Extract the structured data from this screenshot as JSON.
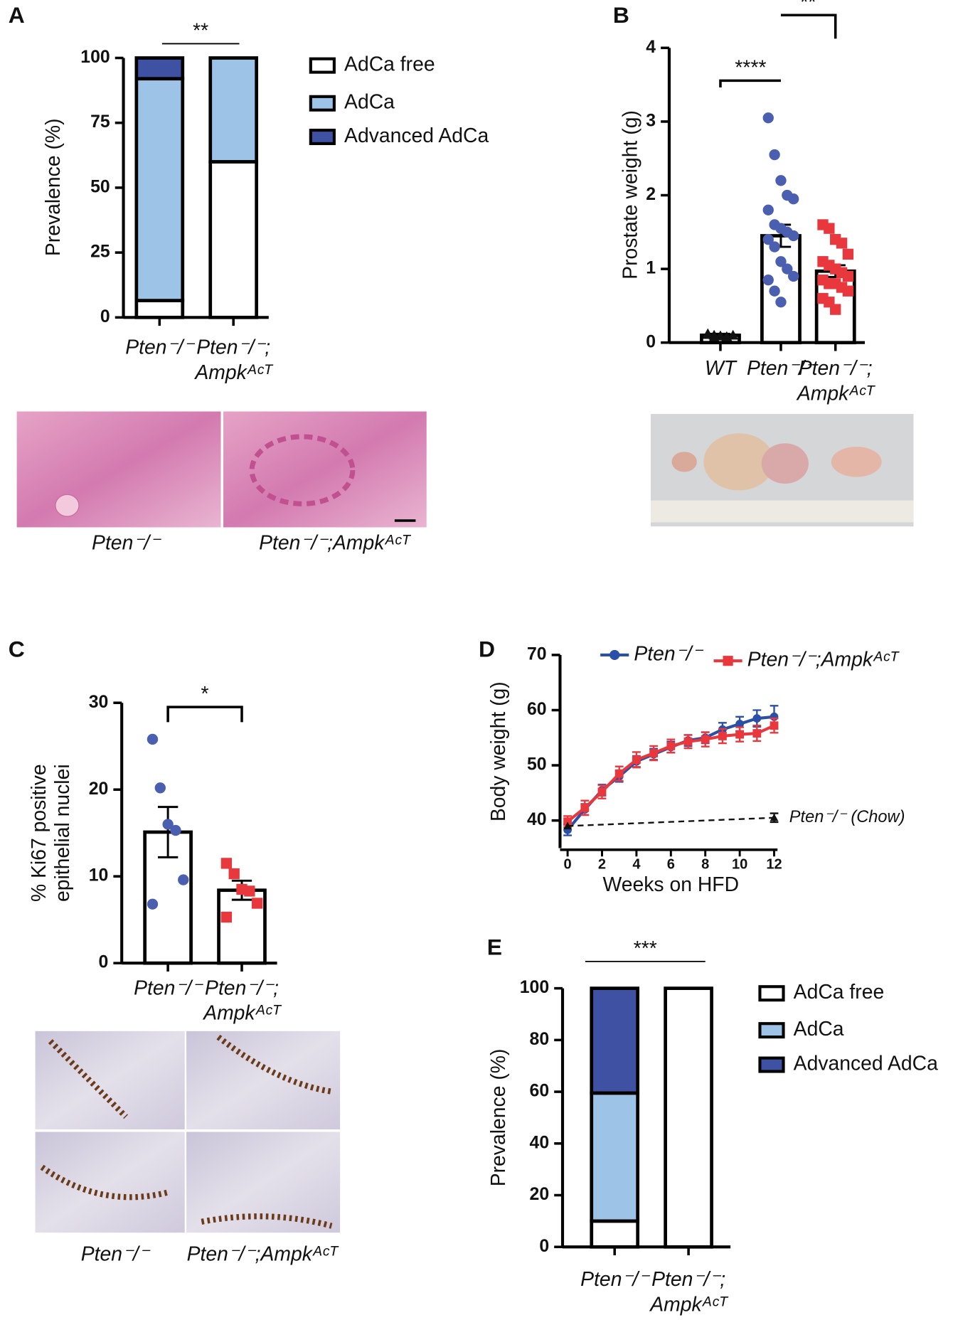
{
  "chart_data": [
    {
      "panel": "A",
      "type": "stacked-bar",
      "ylabel": "Prevalence (%)",
      "categories": [
        [
          "Pten⁻/⁻"
        ],
        [
          "Pten⁻/⁻;",
          "Ampkᴬᶜᵀ"
        ]
      ],
      "series": [
        {
          "name": "AdCa free",
          "color": "#ffffff",
          "values": [
            6.5,
            60
          ]
        },
        {
          "name": "AdCa",
          "color": "#9dc3e6",
          "values": [
            85.5,
            40
          ]
        },
        {
          "name": "Advanced AdCa",
          "color": "#3f51a3",
          "values": [
            8,
            0
          ]
        }
      ],
      "ylim": [
        0,
        100
      ],
      "yticks": [
        0,
        25,
        50,
        75,
        100
      ],
      "significance": [
        "**"
      ],
      "image_captions": [
        "Pten⁻/⁻",
        "Pten⁻/⁻;Ampkᴬᶜᵀ"
      ]
    },
    {
      "panel": "B",
      "type": "bar-scatter",
      "ylabel": "Prostate weight (g)",
      "categories": [
        [
          "WT"
        ],
        [
          "Pten⁻/⁻"
        ],
        [
          "Pten⁻/⁻;",
          "Ampkᴬᶜᵀ"
        ]
      ],
      "means": [
        0.1,
        1.45,
        0.97
      ],
      "sem": [
        0.02,
        0.15,
        0.08
      ],
      "colors": [
        "#111111",
        "#4a5fb0",
        "#e8383d"
      ],
      "markers": [
        "triangle",
        "circle",
        "square"
      ],
      "points": [
        [
          0.12,
          0.1,
          0.09,
          0.08,
          0.1,
          0.11,
          0.07,
          0.09
        ],
        [
          3.05,
          2.55,
          2.2,
          2.0,
          1.95,
          1.8,
          1.6,
          1.55,
          1.5,
          1.45,
          1.4,
          1.3,
          1.1,
          1.0,
          0.9,
          0.85,
          0.7,
          0.55
        ],
        [
          1.6,
          1.55,
          1.4,
          1.35,
          1.2,
          1.1,
          1.05,
          1.0,
          0.95,
          0.9,
          0.85,
          0.8,
          0.8,
          0.75,
          0.7,
          0.6,
          0.55,
          0.45
        ]
      ],
      "ylim": [
        0,
        4
      ],
      "yticks": [
        0,
        1,
        2,
        3,
        4
      ],
      "significance": [
        "****",
        "**"
      ],
      "image_captions": []
    },
    {
      "panel": "C",
      "type": "bar-scatter",
      "ylabel": [
        "% Ki67 positive",
        "epithelial nuclei"
      ],
      "categories": [
        [
          "Pten⁻/⁻"
        ],
        [
          "Pten⁻/⁻;",
          "Ampkᴬᶜᵀ"
        ]
      ],
      "means": [
        15.1,
        8.4
      ],
      "sem": [
        2.9,
        1.1
      ],
      "colors": [
        "#4a5fb0",
        "#e8383d"
      ],
      "markers": [
        "circle",
        "square"
      ],
      "points": [
        [
          25.8,
          20.2,
          16.0,
          15.3,
          9.6,
          6.8
        ],
        [
          11.5,
          10.3,
          8.5,
          8.3,
          6.9,
          5.3
        ]
      ],
      "ylim": [
        0,
        30
      ],
      "yticks": [
        0,
        10,
        20,
        30
      ],
      "significance": [
        "*"
      ],
      "image_captions": [
        "Pten⁻/⁻",
        "Pten⁻/⁻;Ampkᴬᶜᵀ"
      ]
    },
    {
      "panel": "D",
      "type": "line",
      "xlabel": "Weeks on HFD",
      "ylabel": "Body weight (g)",
      "x": [
        0,
        1,
        2,
        3,
        4,
        5,
        6,
        7,
        8,
        9,
        10,
        11,
        12
      ],
      "series": [
        {
          "name": "Pten⁻/⁻",
          "color": "#2a4fa8",
          "marker": "circle",
          "values": [
            38.3,
            42,
            45.5,
            48,
            50.7,
            52,
            53.3,
            54.5,
            55,
            56.5,
            57.5,
            58.5,
            58.8
          ],
          "errors": [
            1,
            1,
            1,
            1,
            1,
            1,
            1,
            1,
            1,
            1.2,
            1.3,
            1.5,
            2
          ]
        },
        {
          "name": "Pten⁻/⁻;Ampkᴬᶜᵀ",
          "color": "#e8383d",
          "marker": "square",
          "values": [
            39.8,
            42.3,
            45.2,
            48.5,
            51,
            52.2,
            53.5,
            54.3,
            54.7,
            55.3,
            55.6,
            55.8,
            57.2
          ],
          "errors": [
            1,
            1.3,
            1.2,
            1.3,
            1.4,
            1.3,
            1.2,
            1.2,
            1.3,
            1.3,
            1.3,
            1.4,
            1.3
          ]
        }
      ],
      "annotation_series": {
        "name": "Pten⁻/⁻ (Chow)",
        "color": "#111111",
        "marker": "triangle",
        "dashed": true,
        "x": [
          0,
          12
        ],
        "values": [
          39,
          40.5
        ],
        "errors": [
          null,
          0.8
        ]
      },
      "xlim": [
        0,
        12
      ],
      "xticks": [
        0,
        2,
        4,
        6,
        8,
        10,
        12
      ],
      "ylim": [
        35,
        70
      ],
      "yticks": [
        40,
        50,
        60,
        70
      ]
    },
    {
      "panel": "E",
      "type": "stacked-bar",
      "ylabel": "Prevalence (%)",
      "categories": [
        [
          "Pten⁻/⁻"
        ],
        [
          "Pten⁻/⁻;",
          "Ampkᴬᶜᵀ"
        ]
      ],
      "series": [
        {
          "name": "AdCa free",
          "color": "#ffffff",
          "values": [
            10,
            100
          ]
        },
        {
          "name": "AdCa",
          "color": "#9dc3e6",
          "values": [
            49.5,
            0
          ]
        },
        {
          "name": "Advanced AdCa",
          "color": "#3f51a3",
          "values": [
            40.5,
            0
          ]
        }
      ],
      "ylim": [
        0,
        100
      ],
      "yticks": [
        0,
        20,
        40,
        60,
        80,
        100
      ],
      "significance": [
        "***"
      ],
      "image_captions": []
    }
  ]
}
